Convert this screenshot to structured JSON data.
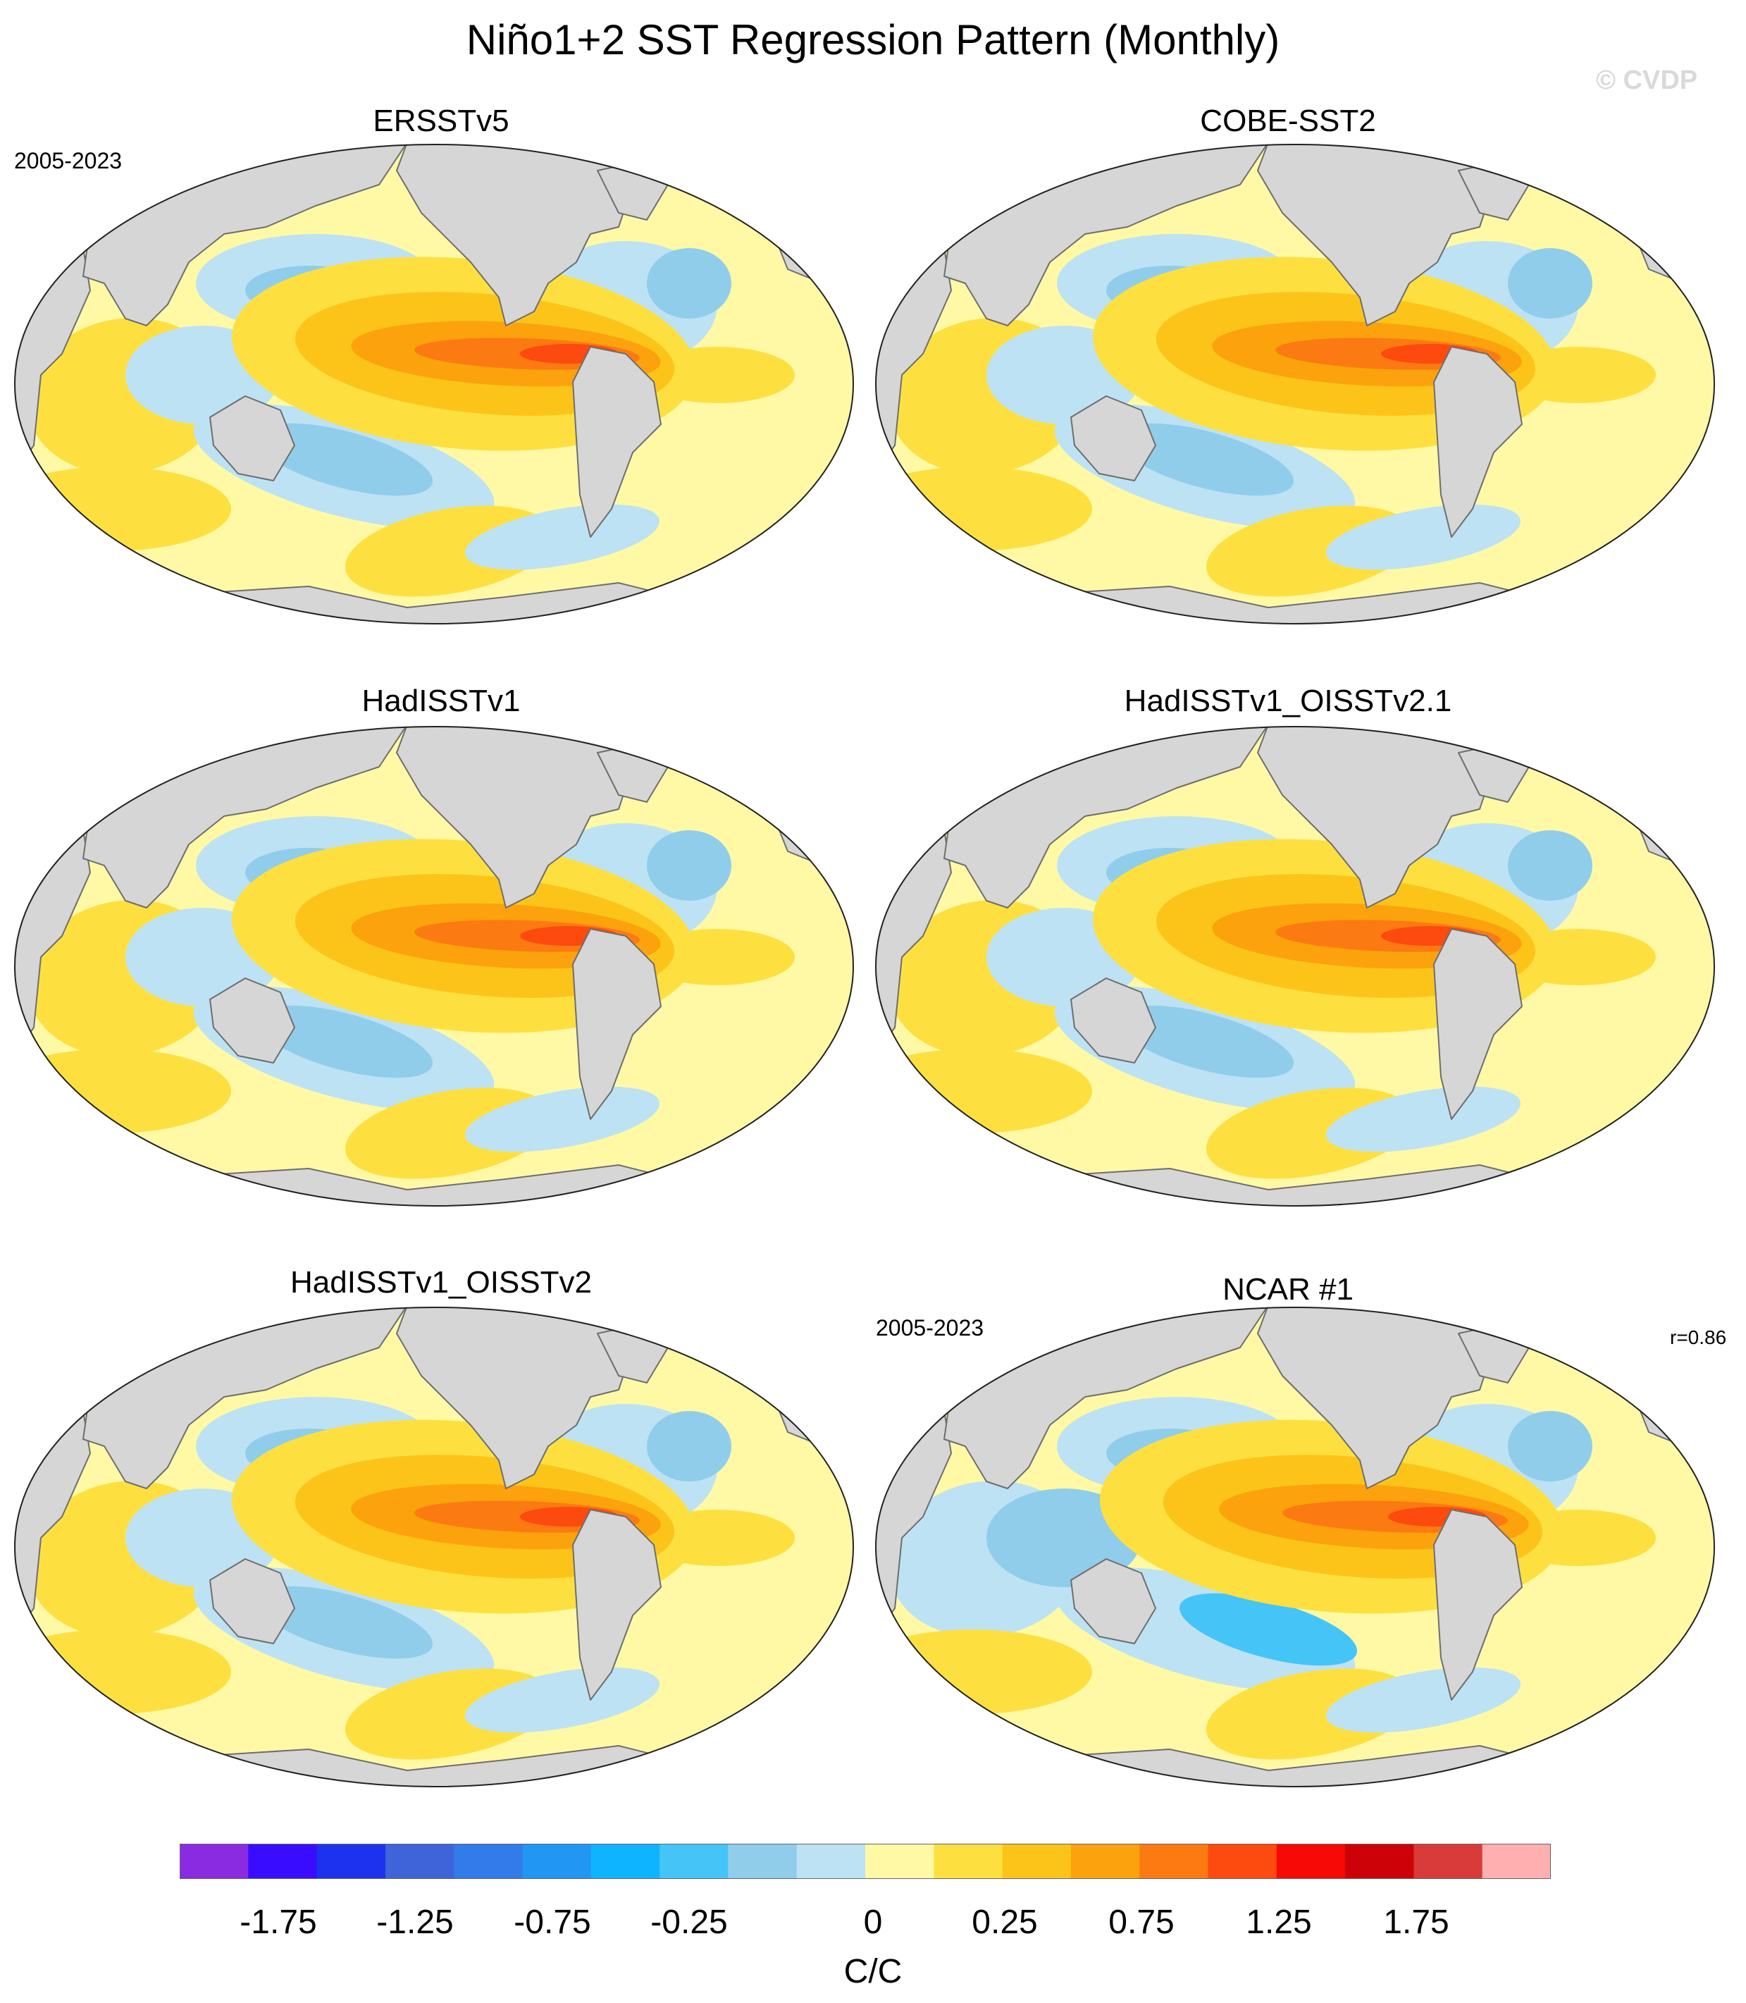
{
  "title": "Niño1+2 SST Regression Pattern (Monthly)",
  "watermark": "© CVDP",
  "panels": [
    {
      "title": "ERSSTv5",
      "period": "2005-2023",
      "corr": ""
    },
    {
      "title": "COBE-SST2",
      "period": "",
      "corr": ""
    },
    {
      "title": "HadISSTv1",
      "period": "",
      "corr": ""
    },
    {
      "title": "HadISSTv1_OISSTv2.1",
      "period": "",
      "corr": ""
    },
    {
      "title": "HadISSTv1_OISSTv2",
      "period": "",
      "corr": ""
    },
    {
      "title": "NCAR #1",
      "period": "2005-2023",
      "corr": "r=0.86"
    }
  ],
  "colorbar": {
    "unit": "C/C",
    "tick_labels": [
      "-1.75",
      "-1.25",
      "-0.75",
      "-0.25",
      "0",
      "0.25",
      "0.75",
      "1.25",
      "1.75"
    ],
    "colors": [
      "#8a2be2",
      "#3a0cff",
      "#1c32ee",
      "#3f63d8",
      "#337aea",
      "#2196f2",
      "#0eb4ff",
      "#45c4f8",
      "#90cdeb",
      "#bde2f4",
      "#fff9a6",
      "#fde040",
      "#fcc419",
      "#fca20c",
      "#fc7a12",
      "#fd4a0e",
      "#f70a05",
      "#cd0208",
      "#d93a3a",
      "#ffafb0"
    ]
  },
  "legend_colors": {
    "land": "#d6d6d6",
    "coast": "#6e6e6e"
  }
}
